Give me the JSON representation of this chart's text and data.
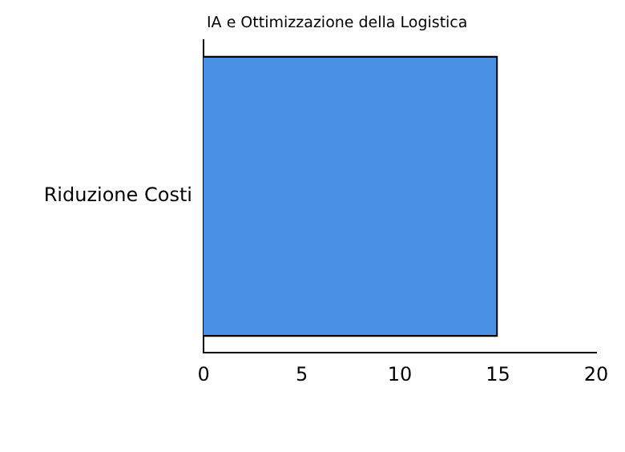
{
  "chart_data": {
    "type": "bar",
    "orientation": "horizontal",
    "title": "IA e Ottimizzazione della Logistica",
    "categories": [
      "Riduzione Costi"
    ],
    "series": [
      {
        "color": "#4a90e2",
        "values": [
          15
        ]
      }
    ],
    "xlim": [
      0,
      20
    ],
    "xticks": [
      0,
      5,
      10,
      15,
      20
    ],
    "grid": false,
    "legend": false
  }
}
